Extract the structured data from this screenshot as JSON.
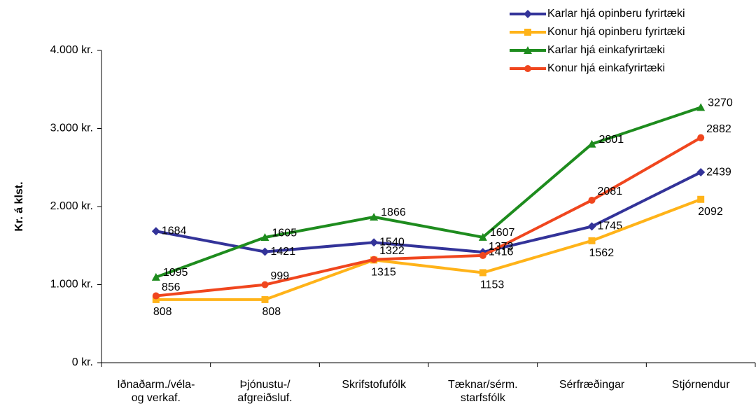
{
  "chart_data": {
    "type": "line",
    "y_label": "Kr. á klst.",
    "categories": [
      "Iðnaðarm./véla-\nog verkaf.",
      "Þjónustu-/\nafgreiðsluf.",
      "Skrifstofufólk",
      "Tæknar/sérm.\nstarfsfólk",
      "Sérfræðingar",
      "Stjórnendur"
    ],
    "series": [
      {
        "name": "Karlar hjá opinberu fyrirtæki",
        "color": "#333399",
        "marker": "diamond",
        "values": [
          1684,
          1421,
          1540,
          1416,
          1745,
          2439
        ]
      },
      {
        "name": "Konur hjá opinberu fyrirtæki",
        "color": "#FFB319",
        "marker": "square",
        "values": [
          808,
          808,
          1315,
          1153,
          1562,
          2092
        ]
      },
      {
        "name": "Karlar hjá einkafyrirtæki",
        "color": "#1E8C1E",
        "marker": "triangle",
        "values": [
          1095,
          1605,
          1866,
          1607,
          2801,
          3270
        ]
      },
      {
        "name": "Konur hjá einkafyrirtæki",
        "color": "#F0461E",
        "marker": "circle",
        "values": [
          856,
          999,
          1322,
          1373,
          2081,
          2882
        ]
      }
    ],
    "ylim": [
      0,
      4000
    ],
    "yticks": [
      {
        "value": 0,
        "label": "0 kr."
      },
      {
        "value": 1000,
        "label": "1.000 kr."
      },
      {
        "value": 2000,
        "label": "2.000 kr."
      },
      {
        "value": 3000,
        "label": "3.000 kr."
      },
      {
        "value": 4000,
        "label": "4.000 kr."
      }
    ],
    "legend": "top-right",
    "grid": false
  }
}
